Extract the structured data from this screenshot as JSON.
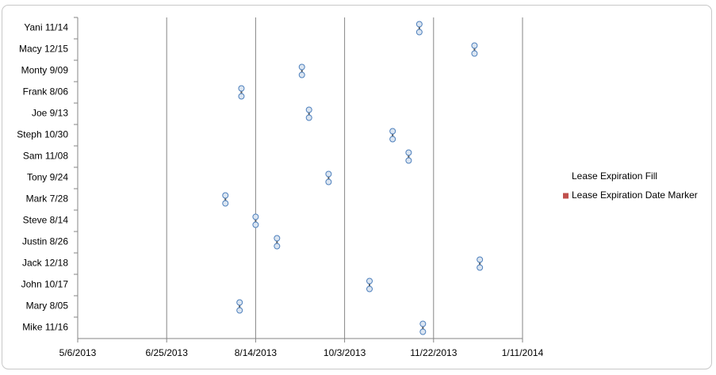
{
  "chart_data": {
    "type": "dot",
    "categories": [
      "Yani 11/14",
      "Macy 12/15",
      "Monty 9/09",
      "Frank 8/06",
      "Joe 9/13",
      "Steph 10/30",
      "Sam 11/08",
      "Tony 9/24",
      "Mark 7/28",
      "Steve 8/14",
      "Justin 8/26",
      "Jack 12/18",
      "John 10/17",
      "Mary 8/05",
      "Mike 11/16"
    ],
    "series": [
      {
        "name": "Lease Expiration Fill"
      },
      {
        "name": "Lease Expiration Date Marker",
        "color": "#c0504d",
        "values": [
          "2013-11-14",
          "2013-12-15",
          "2013-09-09",
          "2013-08-06",
          "2013-09-13",
          "2013-10-30",
          "2013-11-08",
          "2013-09-24",
          "2013-07-28",
          "2013-08-14",
          "2013-08-26",
          "2013-12-18",
          "2013-10-17",
          "2013-08-05",
          "2013-11-16"
        ]
      }
    ],
    "xlim": [
      "2013-05-06",
      "2014-01-11"
    ],
    "xticks": [
      {
        "value": "2013-05-06",
        "label": "5/6/2013"
      },
      {
        "value": "2013-06-25",
        "label": "6/25/2013"
      },
      {
        "value": "2013-08-14",
        "label": "8/14/2013"
      },
      {
        "value": "2013-10-03",
        "label": "10/3/2013"
      },
      {
        "value": "2013-11-22",
        "label": "11/22/2013"
      },
      {
        "value": "2014-01-11",
        "label": "1/11/2014"
      }
    ],
    "grid": true,
    "legend": "right"
  }
}
